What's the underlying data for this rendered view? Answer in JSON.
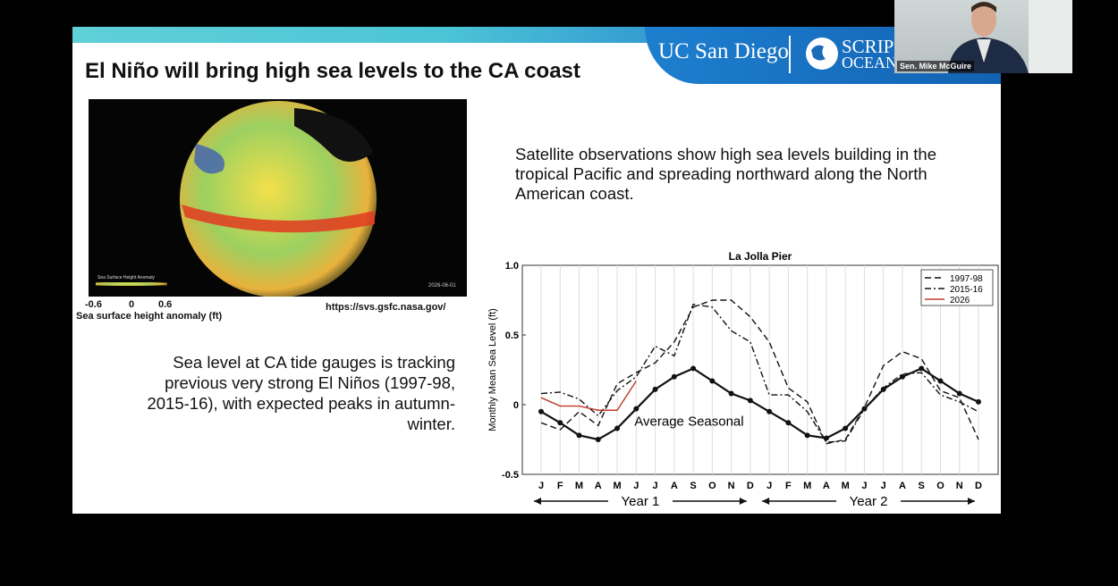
{
  "slide": {
    "title": "El Niño will bring high sea levels to the CA coast",
    "logo_left": "UC San Diego",
    "logo_right_1": "SCRIP",
    "logo_right_2": "OCEAN",
    "image": {
      "legend_title": "Sea Surface Height Anomaly",
      "date": "2026-06-01",
      "scale_min": "-0.6",
      "scale_mid": "0",
      "scale_max": "0.6",
      "caption": "Sea surface height anomaly (ft)",
      "source": "https://svs.gsfc.nasa.gov/"
    },
    "right_text": "Satellite observations show high sea levels building in the tropical Pacific and spreading northward along the North American coast.",
    "left_text": "Sea level at CA tide gauges is tracking previous very strong El Niños (1997-98, 2015-16), with expected peaks in autumn-winter."
  },
  "participant": {
    "name": "Sen. Mike McGuire"
  },
  "chart_data": {
    "type": "line",
    "title": "La Jolla Pier",
    "y_label": "Monthly Mean Sea Level (ft)",
    "categories": [
      "J",
      "F",
      "M",
      "A",
      "M",
      "J",
      "J",
      "A",
      "S",
      "O",
      "N",
      "D",
      "J",
      "F",
      "M",
      "A",
      "M",
      "J",
      "J",
      "A",
      "S",
      "O",
      "N",
      "D"
    ],
    "x_groups": [
      "Year 1",
      "Year 2"
    ],
    "ylim": [
      -0.5,
      1
    ],
    "yticks": [
      -0.5,
      0,
      0.5,
      {
        "value": 1,
        "label": "1.0"
      }
    ],
    "grid": true,
    "legend": "upper right",
    "series": [
      {
        "name": "1997-98",
        "color": "#111111",
        "dash": "7,4",
        "values": [
          -0.13,
          -0.18,
          -0.05,
          -0.15,
          0.15,
          0.23,
          0.3,
          0.45,
          0.7,
          0.75,
          0.75,
          0.63,
          0.45,
          0.12,
          0.02,
          -0.28,
          -0.25,
          -0.02,
          0.28,
          0.38,
          0.33,
          0.1,
          0.05,
          -0.25
        ]
      },
      {
        "name": "2015-16",
        "color": "#111111",
        "dash": "7,3,2,3",
        "values": [
          0.08,
          0.09,
          0.04,
          -0.08,
          0.1,
          0.2,
          0.42,
          0.35,
          0.72,
          0.7,
          0.53,
          0.45,
          0.07,
          0.07,
          -0.05,
          -0.27,
          -0.26,
          -0.03,
          0.12,
          0.22,
          0.23,
          0.07,
          0.02,
          -0.05
        ]
      },
      {
        "name": "2026",
        "color": "#c0392b",
        "dash": "",
        "values": [
          0.05,
          -0.01,
          -0.01,
          -0.04,
          -0.04,
          0.17,
          null,
          null,
          null,
          null,
          null,
          null,
          null,
          null,
          null,
          null,
          null,
          null,
          null,
          null,
          null,
          null,
          null,
          null
        ]
      },
      {
        "name": "Average Seasonal",
        "color": "#111111",
        "dash": "",
        "markers": true,
        "label_inline": true,
        "values": [
          -0.05,
          -0.13,
          -0.22,
          -0.25,
          -0.17,
          -0.03,
          0.11,
          0.2,
          0.26,
          0.17,
          0.08,
          0.03,
          -0.05,
          -0.13,
          -0.22,
          -0.24,
          -0.17,
          -0.03,
          0.11,
          0.2,
          0.26,
          0.17,
          0.08,
          0.02
        ]
      }
    ]
  }
}
